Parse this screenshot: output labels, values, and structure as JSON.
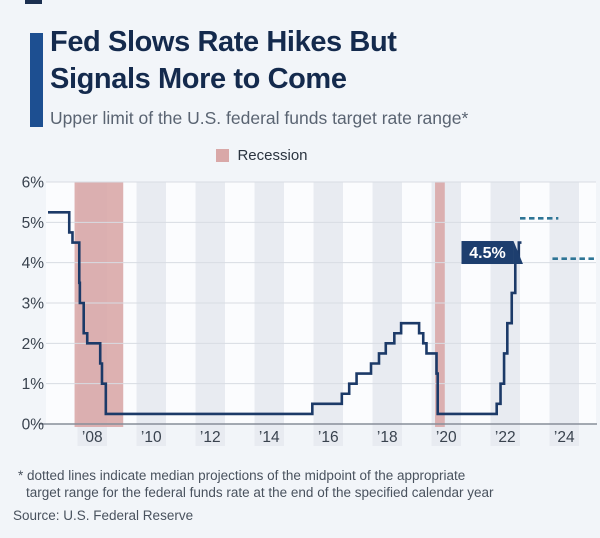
{
  "header": {
    "title_line1": "Fed Slows Rate Hikes But",
    "title_line2": "Signals More to Come",
    "subtitle": "Upper limit of the U.S. federal funds target rate range*"
  },
  "legend": {
    "recession_label": "Recession"
  },
  "footer": {
    "footnote_line1": "* dotted lines indicate median projections of the midpoint of the appropriate",
    "footnote_line2": "target range for the federal funds rate at the end of the specified calendar year",
    "source": "Source: U.S. Federal Reserve"
  },
  "colors": {
    "accent_bar": "#1d4f91",
    "title_text": "#142a4d",
    "subtitle_text": "#5a6472",
    "page_bg": "#f2f5f9",
    "plot_bg_light": "#fbfcfe",
    "plot_bg_band": "#e8ebf1",
    "recession_band": "#d9a8a8",
    "rate_line": "#1c3a68",
    "projection_line": "#2e7596",
    "grid_line": "#d8dce3",
    "axis_line": "#878e99",
    "axis_text": "#39424e",
    "callout_bg": "#1d3e6e",
    "callout_text": "#ffffff",
    "footnote_text": "#49525e"
  },
  "chart_data": {
    "type": "line",
    "step": true,
    "title": "Fed Slows Rate Hikes But Signals More to Come",
    "subtitle": "Upper limit of the U.S. federal funds target rate range*",
    "x_range": [
      2007,
      2025.6
    ],
    "ylim": [
      0,
      6
    ],
    "grid": true,
    "legend_position": "top-center",
    "y_ticks": [
      {
        "value": 0,
        "label": "0%"
      },
      {
        "value": 1,
        "label": "1%"
      },
      {
        "value": 2,
        "label": "2%"
      },
      {
        "value": 3,
        "label": "3%"
      },
      {
        "value": 4,
        "label": "4%"
      },
      {
        "value": 5,
        "label": "5%"
      },
      {
        "value": 6,
        "label": "6%"
      }
    ],
    "x_ticks": [
      {
        "label": "’08",
        "band": [
          2008,
          2009
        ]
      },
      {
        "label": "’10",
        "band": [
          2010,
          2011
        ]
      },
      {
        "label": "’12",
        "band": [
          2012,
          2013
        ]
      },
      {
        "label": "’14",
        "band": [
          2014,
          2015
        ]
      },
      {
        "label": "’16",
        "band": [
          2016,
          2017
        ]
      },
      {
        "label": "’18",
        "band": [
          2018,
          2019
        ]
      },
      {
        "label": "’20",
        "band": [
          2020,
          2021
        ]
      },
      {
        "label": "’22",
        "band": [
          2022,
          2023
        ]
      },
      {
        "label": "’24",
        "band": [
          2024,
          2025
        ]
      }
    ],
    "series": [
      {
        "name": "Upper limit of U.S. federal funds target rate range (%)",
        "points": [
          [
            2007.0,
            5.25
          ],
          [
            2007.72,
            4.75
          ],
          [
            2007.83,
            4.5
          ],
          [
            2008.06,
            3.5
          ],
          [
            2008.08,
            3.0
          ],
          [
            2008.21,
            2.25
          ],
          [
            2008.33,
            2.0
          ],
          [
            2008.77,
            1.5
          ],
          [
            2008.83,
            1.0
          ],
          [
            2008.96,
            0.25
          ],
          [
            2015.96,
            0.5
          ],
          [
            2016.96,
            0.75
          ],
          [
            2017.21,
            1.0
          ],
          [
            2017.46,
            1.25
          ],
          [
            2017.95,
            1.5
          ],
          [
            2018.22,
            1.75
          ],
          [
            2018.45,
            2.0
          ],
          [
            2018.74,
            2.25
          ],
          [
            2018.97,
            2.5
          ],
          [
            2019.58,
            2.25
          ],
          [
            2019.72,
            2.0
          ],
          [
            2019.83,
            1.75
          ],
          [
            2020.17,
            1.25
          ],
          [
            2020.21,
            0.25
          ],
          [
            2022.21,
            0.5
          ],
          [
            2022.34,
            1.0
          ],
          [
            2022.46,
            1.75
          ],
          [
            2022.57,
            2.5
          ],
          [
            2022.72,
            3.25
          ],
          [
            2022.84,
            4.0
          ],
          [
            2022.96,
            4.5
          ],
          [
            2023.05,
            4.5
          ]
        ]
      }
    ],
    "end_label": {
      "text": "4.5%",
      "year": 2022.96,
      "value": 4.5
    },
    "projections": [
      {
        "value": 5.1,
        "from": 2023.0,
        "to": 2024.3
      },
      {
        "value": 4.1,
        "from": 2024.1,
        "to": 2025.55
      }
    ],
    "recessions": [
      {
        "from": 2007.9,
        "to": 2009.55
      },
      {
        "from": 2020.12,
        "to": 2020.45
      }
    ]
  }
}
